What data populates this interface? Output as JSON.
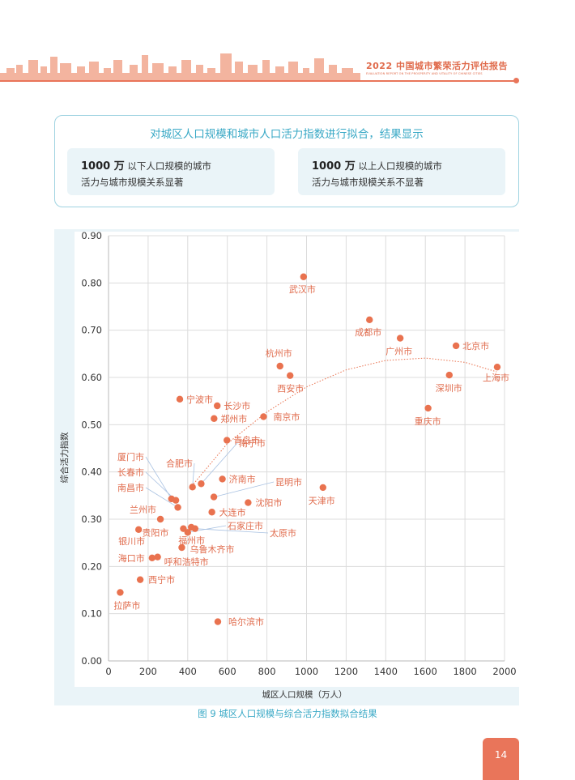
{
  "header": {
    "report_title": "2022 中国城市繁荣活力评估报告",
    "report_subtitle": "EVALUATION REPORT ON THE PROSPERITY AND VITALITY OF CHINESE CITIES"
  },
  "finding": {
    "title": "对城区人口规模和城市人口活力指数进行拟合，结果显示",
    "left_card": {
      "bold": "1000 万",
      "line1_rest": "以下人口规模的城市",
      "line2": "活力与城市规模关系显著"
    },
    "right_card": {
      "bold": "1000 万",
      "line1_rest": "以上人口规模的城市",
      "line2": "活力与城市规模关系不显著"
    }
  },
  "colors": {
    "point": "#e9724f",
    "fit_line": "#e9724f",
    "leader": "#a9c2e2",
    "accent_blue": "#3aa9c6"
  },
  "chart_data": {
    "type": "scatter",
    "xlabel": "城区人口规模（万人）",
    "ylabel": "综合活力指数",
    "xlim": [
      0,
      2000
    ],
    "ylim": [
      0,
      0.9
    ],
    "x_ticks": [
      "0",
      "200",
      "400",
      "600",
      "800",
      "1000",
      "1200",
      "1400",
      "1600",
      "1800",
      "2000"
    ],
    "y_ticks": [
      "0.00",
      "0.10",
      "0.20",
      "0.30",
      "0.40",
      "0.50",
      "0.60",
      "0.70",
      "0.80",
      "0.90"
    ],
    "grid": true,
    "trendline": "polynomial",
    "trend_points": [
      [
        420,
        0.37
      ],
      [
        600,
        0.46
      ],
      [
        800,
        0.527
      ],
      [
        1000,
        0.58
      ],
      [
        1200,
        0.616
      ],
      [
        1400,
        0.636
      ],
      [
        1600,
        0.641
      ],
      [
        1800,
        0.632
      ],
      [
        1960,
        0.612
      ]
    ],
    "points": [
      {
        "name": "武汉市",
        "x": 985,
        "y": 0.813
      },
      {
        "name": "成都市",
        "x": 1318,
        "y": 0.722
      },
      {
        "name": "广州市",
        "x": 1473,
        "y": 0.683
      },
      {
        "name": "北京市",
        "x": 1755,
        "y": 0.667
      },
      {
        "name": "上海市",
        "x": 1963,
        "y": 0.622
      },
      {
        "name": "杭州市",
        "x": 866,
        "y": 0.624
      },
      {
        "name": "西安市",
        "x": 917,
        "y": 0.604
      },
      {
        "name": "深圳市",
        "x": 1721,
        "y": 0.605
      },
      {
        "name": "重庆市",
        "x": 1614,
        "y": 0.535
      },
      {
        "name": "宁波市",
        "x": 360,
        "y": 0.554
      },
      {
        "name": "长沙市",
        "x": 549,
        "y": 0.54
      },
      {
        "name": "郑州市",
        "x": 533,
        "y": 0.513
      },
      {
        "name": "南京市",
        "x": 783,
        "y": 0.517
      },
      {
        "name": "青岛市",
        "x": 598,
        "y": 0.467
      },
      {
        "name": "南宁市",
        "x": 468,
        "y": 0.375
      },
      {
        "name": "合肥市",
        "x": 424,
        "y": 0.368
      },
      {
        "name": "厦门市",
        "x": 318,
        "y": 0.343
      },
      {
        "name": "长春市",
        "x": 340,
        "y": 0.34
      },
      {
        "name": "南昌市",
        "x": 350,
        "y": 0.325
      },
      {
        "name": "济南市",
        "x": 575,
        "y": 0.385
      },
      {
        "name": "昆明市",
        "x": 532,
        "y": 0.347
      },
      {
        "name": "天津市",
        "x": 1083,
        "y": 0.367
      },
      {
        "name": "沈阳市",
        "x": 705,
        "y": 0.335
      },
      {
        "name": "大连市",
        "x": 522,
        "y": 0.315
      },
      {
        "name": "兰州市",
        "x": 262,
        "y": 0.3
      },
      {
        "name": "福州市",
        "x": 418,
        "y": 0.283
      },
      {
        "name": "银川市",
        "x": 152,
        "y": 0.278
      },
      {
        "name": "贵阳市",
        "x": 378,
        "y": 0.28
      },
      {
        "name": "石家庄市",
        "x": 400,
        "y": 0.272
      },
      {
        "name": "太原市",
        "x": 437,
        "y": 0.28
      },
      {
        "name": "乌鲁木齐市",
        "x": 370,
        "y": 0.24
      },
      {
        "name": "海口市",
        "x": 220,
        "y": 0.218
      },
      {
        "name": "呼和浩特市",
        "x": 248,
        "y": 0.22
      },
      {
        "name": "西宁市",
        "x": 160,
        "y": 0.172
      },
      {
        "name": "拉萨市",
        "x": 59,
        "y": 0.145
      },
      {
        "name": "哈尔滨市",
        "x": 552,
        "y": 0.083
      }
    ]
  },
  "caption": "图 9  城区人口规模与综合活力指数拟合结果",
  "page_number": "14"
}
